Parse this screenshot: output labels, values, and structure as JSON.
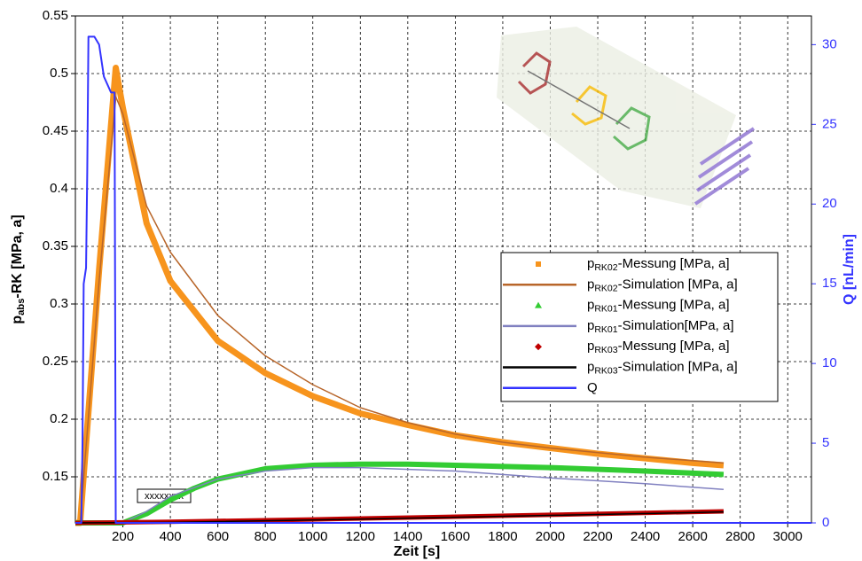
{
  "chart_data": {
    "type": "line",
    "xlabel": "Zeit [s]",
    "ylabel": "pabs-RK [MPa, a]",
    "y2label": "Q [nL/min]",
    "xlim": [
      0,
      3100
    ],
    "ylim": [
      0.11,
      0.55
    ],
    "y2lim": [
      0,
      31.8
    ],
    "xticks": [
      200,
      400,
      600,
      800,
      1000,
      1200,
      1400,
      1600,
      1800,
      2000,
      2200,
      2400,
      2600,
      2800,
      3000
    ],
    "yticks": [
      0.15,
      0.2,
      0.25,
      0.3,
      0.35,
      0.4,
      0.45,
      0.5,
      0.55
    ],
    "y2ticks": [
      0,
      5,
      10,
      15,
      20,
      25,
      30
    ],
    "grid": true,
    "annotation": "xxxxxxxx",
    "series": [
      {
        "name": "pRK02-Messung [MPa, a]",
        "color": "#f7941d",
        "marker": "square",
        "width": 7,
        "x": [
          0,
          20,
          100,
          170,
          200,
          300,
          400,
          600,
          800,
          1000,
          1200,
          1400,
          1600,
          1800,
          2000,
          2200,
          2400,
          2600,
          2730
        ],
        "values": [
          0.11,
          0.11,
          0.33,
          0.505,
          0.47,
          0.37,
          0.32,
          0.268,
          0.24,
          0.22,
          0.205,
          0.195,
          0.186,
          0.18,
          0.175,
          0.17,
          0.166,
          0.162,
          0.16
        ]
      },
      {
        "name": "pRK02-Simulation [MPa, a]",
        "color": "#b8662a",
        "marker": null,
        "width": 1.5,
        "x": [
          20,
          100,
          170,
          200,
          300,
          400,
          600,
          800,
          1000,
          1200,
          1400,
          1600,
          1800,
          2000,
          2400,
          2730
        ],
        "values": [
          0.11,
          0.32,
          0.48,
          0.465,
          0.385,
          0.345,
          0.29,
          0.255,
          0.23,
          0.21,
          0.197,
          0.187,
          0.18,
          0.175,
          0.167,
          0.162
        ]
      },
      {
        "name": "pRK01-Messung [MPa, a]",
        "color": "#33cc33",
        "marker": "triangle",
        "width": 6,
        "x": [
          0,
          200,
          300,
          400,
          500,
          600,
          800,
          1000,
          1200,
          1400,
          1600,
          2000,
          2400,
          2730
        ],
        "values": [
          0.11,
          0.11,
          0.118,
          0.13,
          0.14,
          0.148,
          0.157,
          0.16,
          0.161,
          0.161,
          0.16,
          0.158,
          0.155,
          0.152
        ]
      },
      {
        "name": "pRK01-Simulation[MPa, a]",
        "color": "#8080c0",
        "marker": null,
        "width": 1.5,
        "x": [
          200,
          300,
          400,
          600,
          800,
          1000,
          1200,
          1600,
          2000,
          2400,
          2730
        ],
        "values": [
          0.11,
          0.12,
          0.133,
          0.148,
          0.155,
          0.158,
          0.158,
          0.155,
          0.149,
          0.144,
          0.139
        ]
      },
      {
        "name": "pRK03-Messung [MPa, a]",
        "color": "#c00000",
        "marker": "diamond",
        "width": 5,
        "x": [
          0,
          400,
          1000,
          2000,
          2730
        ],
        "values": [
          0.11,
          0.111,
          0.113,
          0.117,
          0.12
        ]
      },
      {
        "name": "pRK03-Simulation [MPa, a]",
        "color": "#000000",
        "marker": null,
        "width": 1.5,
        "x": [
          0,
          400,
          1000,
          2000,
          2730
        ],
        "values": [
          0.11,
          0.1105,
          0.1125,
          0.1165,
          0.1195
        ]
      },
      {
        "name": "Q",
        "color": "#3333ff",
        "marker": null,
        "width": 2,
        "axis": "y2",
        "x": [
          0,
          25,
          30,
          35,
          45,
          50,
          55,
          80,
          100,
          120,
          150,
          165,
          170,
          3100
        ],
        "values": [
          0,
          0,
          5,
          15,
          16,
          22,
          30.5,
          30.5,
          30,
          28,
          27,
          27,
          0,
          0
        ]
      }
    ]
  }
}
